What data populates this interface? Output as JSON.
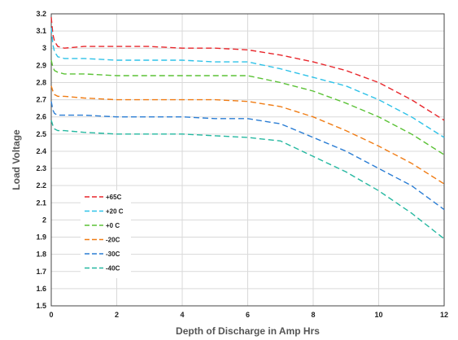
{
  "chart_data": {
    "type": "line",
    "title": "",
    "xlabel": "Depth of Discharge in Amp Hrs",
    "ylabel": "Load Voltage",
    "xlim": [
      0,
      12
    ],
    "ylim": [
      1.5,
      3.2
    ],
    "xticks": [
      "0",
      "2",
      "4",
      "6",
      "8",
      "10",
      "12"
    ],
    "yticks": [
      "1.5",
      "1.6",
      "1.7",
      "1.8",
      "1.9",
      "2",
      "2.1",
      "2.2",
      "2.3",
      "2.4",
      "2.5",
      "2.6",
      "2.7",
      "2.8",
      "2.9",
      "3",
      "3.1",
      "3.2"
    ],
    "grid": true,
    "legend_position": "lower-left",
    "series": [
      {
        "name": "+65C",
        "color": "#e8262b",
        "x": [
          0,
          0.05,
          0.1,
          0.2,
          0.4,
          1,
          2,
          3,
          4,
          5,
          6,
          7,
          8,
          9,
          10,
          11,
          12
        ],
        "y": [
          3.18,
          3.08,
          3.04,
          3.01,
          3.0,
          3.01,
          3.01,
          3.01,
          3.0,
          3.0,
          2.99,
          2.96,
          2.92,
          2.87,
          2.8,
          2.7,
          2.58
        ]
      },
      {
        "name": "+20 C",
        "color": "#2fc2e8",
        "x": [
          0,
          0.05,
          0.1,
          0.2,
          0.4,
          1,
          2,
          3,
          4,
          5,
          6,
          7,
          8,
          9,
          10,
          11,
          12
        ],
        "y": [
          3.12,
          3.02,
          2.98,
          2.95,
          2.94,
          2.94,
          2.93,
          2.93,
          2.93,
          2.92,
          2.92,
          2.88,
          2.83,
          2.78,
          2.7,
          2.6,
          2.48
        ]
      },
      {
        "name": "+0 C",
        "color": "#5bc236",
        "x": [
          0,
          0.05,
          0.1,
          0.2,
          0.4,
          1,
          2,
          3,
          4,
          5,
          6,
          7,
          8,
          9,
          10,
          11,
          12
        ],
        "y": [
          2.93,
          2.89,
          2.87,
          2.86,
          2.85,
          2.85,
          2.84,
          2.84,
          2.84,
          2.84,
          2.84,
          2.8,
          2.75,
          2.68,
          2.6,
          2.5,
          2.38
        ]
      },
      {
        "name": "-20C",
        "color": "#f07c14",
        "x": [
          0,
          0.05,
          0.1,
          0.2,
          0.4,
          1,
          2,
          3,
          4,
          5,
          6,
          7,
          8,
          9,
          10,
          11,
          12
        ],
        "y": [
          2.78,
          2.75,
          2.73,
          2.72,
          2.72,
          2.71,
          2.7,
          2.7,
          2.7,
          2.7,
          2.69,
          2.66,
          2.6,
          2.52,
          2.43,
          2.33,
          2.21
        ]
      },
      {
        "name": "-30C",
        "color": "#2a7dd4",
        "x": [
          0,
          0.05,
          0.1,
          0.2,
          0.4,
          1,
          2,
          3,
          4,
          5,
          6,
          7,
          8,
          9,
          10,
          11,
          12
        ],
        "y": [
          2.69,
          2.64,
          2.62,
          2.61,
          2.61,
          2.61,
          2.6,
          2.6,
          2.6,
          2.59,
          2.59,
          2.56,
          2.48,
          2.4,
          2.3,
          2.2,
          2.06
        ]
      },
      {
        "name": "-40C",
        "color": "#25b8a0",
        "x": [
          0,
          0.05,
          0.1,
          0.2,
          0.4,
          1,
          2,
          3,
          4,
          5,
          6,
          7,
          8,
          9,
          10,
          11,
          12
        ],
        "y": [
          2.58,
          2.55,
          2.53,
          2.52,
          2.52,
          2.51,
          2.5,
          2.5,
          2.5,
          2.49,
          2.48,
          2.46,
          2.37,
          2.28,
          2.17,
          2.04,
          1.89
        ]
      }
    ]
  }
}
